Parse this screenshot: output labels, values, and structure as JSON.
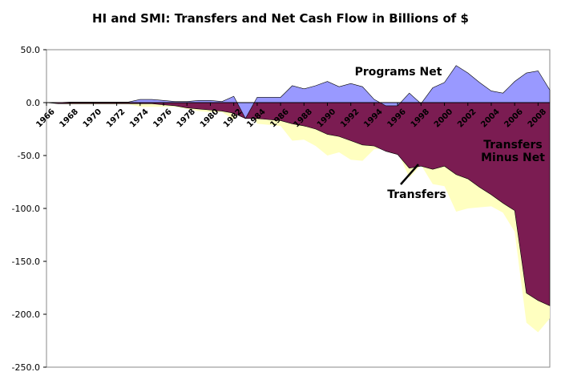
{
  "chart_data": {
    "type": "area",
    "title": "HI and SMI: Transfers and Net Cash Flow in Billions of $",
    "xlabel": "",
    "ylabel": "",
    "ylim": [
      -250,
      50
    ],
    "xlim": [
      1966,
      2009
    ],
    "grid": false,
    "y_ticks": [
      50,
      0,
      -50,
      -100,
      -150,
      -200,
      -250
    ],
    "y_tick_labels": [
      "50.0",
      "0.0",
      "-50.0",
      "-100.0",
      "-150.0",
      "-200.0",
      "-250.0"
    ],
    "x_ticks": [
      1966,
      1968,
      1970,
      1972,
      1974,
      1976,
      1978,
      1980,
      1982,
      1984,
      1986,
      1988,
      1990,
      1992,
      1994,
      1996,
      1998,
      2000,
      2002,
      2004,
      2006,
      2008
    ],
    "x_tick_labels": [
      "1966",
      "1968",
      "1970",
      "1972",
      "1974",
      "1976",
      "1978",
      "1980",
      "1982",
      "1984",
      "1986",
      "1988",
      "1990",
      "1992",
      "1994",
      "1996",
      "1998",
      "2000",
      "2002",
      "2004",
      "2006",
      "2008"
    ],
    "x": [
      1966,
      1967,
      1968,
      1969,
      1970,
      1971,
      1972,
      1973,
      1974,
      1975,
      1976,
      1977,
      1978,
      1979,
      1980,
      1981,
      1982,
      1983,
      1984,
      1985,
      1986,
      1987,
      1988,
      1989,
      1990,
      1991,
      1992,
      1993,
      1994,
      1995,
      1996,
      1997,
      1998,
      1999,
      2000,
      2001,
      2002,
      2003,
      2004,
      2005,
      2006,
      2007,
      2008,
      2009
    ],
    "series": [
      {
        "name": "Programs Net",
        "color": "#9999ff",
        "values": [
          0,
          0,
          0.5,
          0.5,
          0.5,
          0.5,
          0.5,
          0.5,
          3,
          3,
          2,
          1,
          1,
          2,
          2,
          1,
          6,
          -15,
          5,
          5,
          5,
          16,
          13,
          16,
          20,
          15,
          18,
          15,
          3,
          -3,
          -3,
          9,
          -1,
          14,
          19,
          35,
          28,
          19,
          11,
          9,
          20,
          28,
          30,
          12
        ]
      },
      {
        "name": "Transfers",
        "color": "#7b1c52",
        "values": [
          0,
          -1,
          -1,
          -1,
          -1,
          -1,
          -1,
          -1,
          -1,
          -1,
          -2,
          -3,
          -5,
          -6,
          -7,
          -8,
          -10,
          -15,
          -15,
          -16,
          -17,
          -20,
          -22,
          -25,
          -30,
          -32,
          -36,
          -40,
          -41,
          -46,
          -49,
          -62,
          -60,
          -63,
          -60,
          -68,
          -72,
          -80,
          -87,
          -95,
          -102,
          -180,
          -187,
          -192
        ]
      },
      {
        "name": "Transfers Minus Net",
        "color": "#ffffc0",
        "values": [
          0,
          -1,
          -1.5,
          -1.5,
          -1.5,
          -1.5,
          -1.5,
          -1.5,
          -4,
          -4,
          -4,
          -4,
          -6,
          -8,
          -9,
          -9,
          -16,
          0,
          -20,
          -21,
          -22,
          -36,
          -35,
          -41,
          -50,
          -47,
          -54,
          -55,
          -44,
          -43,
          -46,
          -71,
          -59,
          -77,
          -79,
          -103,
          -100,
          -99,
          -98,
          -104,
          -122,
          -208,
          -217,
          -204
        ]
      }
    ],
    "annotations": [
      "Programs Net",
      "Transfers",
      "Transfers",
      "Minus Net"
    ]
  },
  "icons": {
    "transfers_pointer": "pointer-line"
  }
}
